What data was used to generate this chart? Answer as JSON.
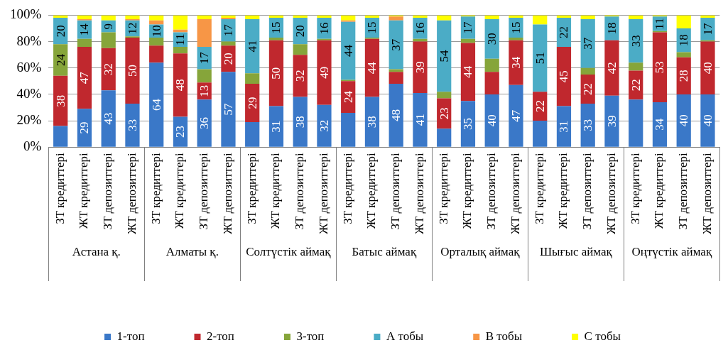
{
  "chart_data": {
    "type": "bar",
    "stacked": true,
    "grid": "y",
    "legend": "bottom",
    "categories": [
      "ЗТ кредиттері",
      "ЖТ кредиттері",
      "ЗТ депозиттері",
      "ЖТ депозиттері",
      "ЗТ кредиттері",
      "ЖТ кредиттері",
      "ЗТ депозиттері",
      "ЖТ депозиттері",
      "ЗТ кредиттері",
      "ЖТ кредиттері",
      "ЗТ депозиттері",
      "ЖТ депозиттері",
      "ЗТ кредиттері",
      "ЖТ кредиттері",
      "ЗТ депозиттері",
      "ЖТ депозиттері",
      "ЗТ кредиттері",
      "ЖТ кредиттері",
      "ЗТ депозиттері",
      "ЖТ депозиттері",
      "ЗТ кредиттері",
      "ЖТ кредиттері",
      "ЗТ депозиттері",
      "ЖТ депозиттері",
      "ЗТ кредиттері",
      "ЖТ кредиттері",
      "ЗТ депозиттері",
      "ЖТ депозиттері"
    ],
    "annotations": [
      "Астана қ.",
      "Алматы қ.",
      "Солтүстік аймақ",
      "Батыс аймақ",
      "Орталық аймақ",
      "Шығыс аймақ",
      "Оңтүстік аймақ"
    ],
    "ylim": [
      0,
      100
    ],
    "yticks": [
      {
        "value": 0,
        "label": "0%"
      },
      {
        "value": 20,
        "label": "20%"
      },
      {
        "value": 40,
        "label": "40%"
      },
      {
        "value": 60,
        "label": "60%"
      },
      {
        "value": 80,
        "label": "80%"
      },
      {
        "value": 100,
        "label": "100%"
      }
    ],
    "series": [
      {
        "name": "1-топ",
        "color": "#3a78c8",
        "values": [
          16,
          29,
          43,
          33,
          64,
          23,
          36,
          57,
          19,
          31,
          38,
          32,
          26,
          38,
          48,
          41,
          14,
          35,
          40,
          47,
          20,
          31,
          33,
          39,
          36,
          34,
          40,
          40
        ],
        "value_labels": [
          null,
          "29",
          "43",
          "33",
          "64",
          "23",
          "36",
          "57",
          null,
          "31",
          "38",
          "32",
          null,
          "38",
          "48",
          "41",
          null,
          "35",
          "40",
          "47",
          null,
          "31",
          "33",
          "39",
          null,
          "34",
          "40",
          "40"
        ]
      },
      {
        "name": "2-топ",
        "color": "#c0282e",
        "values": [
          38,
          47,
          32,
          50,
          13,
          48,
          13,
          20,
          29,
          50,
          32,
          49,
          24,
          44,
          9,
          39,
          23,
          44,
          17,
          34,
          22,
          45,
          22,
          42,
          22,
          53,
          28,
          40
        ],
        "value_labels": [
          "38",
          "47",
          "32",
          "50",
          null,
          "48",
          "13",
          "20",
          "29",
          "50",
          "32",
          "49",
          "24",
          "44",
          null,
          "39",
          "23",
          "44",
          null,
          "34",
          "22",
          "45",
          "22",
          "42",
          "22",
          "53",
          "28",
          "40"
        ]
      },
      {
        "name": "3-топ",
        "color": "#86a53a",
        "values": [
          24,
          6,
          12,
          1,
          6,
          5,
          10,
          3,
          8,
          2,
          8,
          1,
          1,
          1,
          2,
          2,
          5,
          3,
          10,
          2,
          0,
          0,
          5,
          0,
          6,
          1,
          4,
          1
        ],
        "value_labels": [
          "24",
          null,
          null,
          null,
          null,
          null,
          null,
          null,
          null,
          null,
          null,
          null,
          null,
          null,
          null,
          null,
          null,
          null,
          null,
          null,
          null,
          null,
          null,
          null,
          null,
          null,
          null,
          null
        ]
      },
      {
        "name": "А тобы",
        "color": "#4bacc6",
        "values": [
          20,
          14,
          9,
          12,
          10,
          11,
          17,
          17,
          41,
          15,
          20,
          16,
          44,
          15,
          37,
          16,
          54,
          17,
          30,
          15,
          51,
          22,
          37,
          18,
          33,
          11,
          18,
          17
        ],
        "value_labels": [
          "20",
          "14",
          "9",
          "12",
          "10",
          "11",
          "17",
          "17",
          "41",
          "15",
          "20",
          "16",
          "44",
          "15",
          "37",
          "16",
          "54",
          "17",
          "30",
          "15",
          "51",
          "22",
          "37",
          "18",
          "33",
          "11",
          "18",
          "17"
        ]
      },
      {
        "name": "В тобы",
        "color": "#f79646",
        "values": [
          0,
          1,
          0,
          1,
          3,
          2,
          21,
          1,
          0,
          0,
          0,
          0,
          1,
          0,
          3,
          0,
          0,
          0,
          0,
          0,
          0,
          0,
          0,
          0,
          0,
          0,
          0,
          0
        ]
      },
      {
        "name": "С тобы",
        "color": "#ffff00",
        "values": [
          2,
          3,
          4,
          3,
          4,
          11,
          3,
          2,
          3,
          2,
          2,
          2,
          4,
          2,
          1,
          2,
          4,
          1,
          3,
          2,
          7,
          2,
          3,
          1,
          3,
          1,
          10,
          2
        ]
      }
    ]
  }
}
